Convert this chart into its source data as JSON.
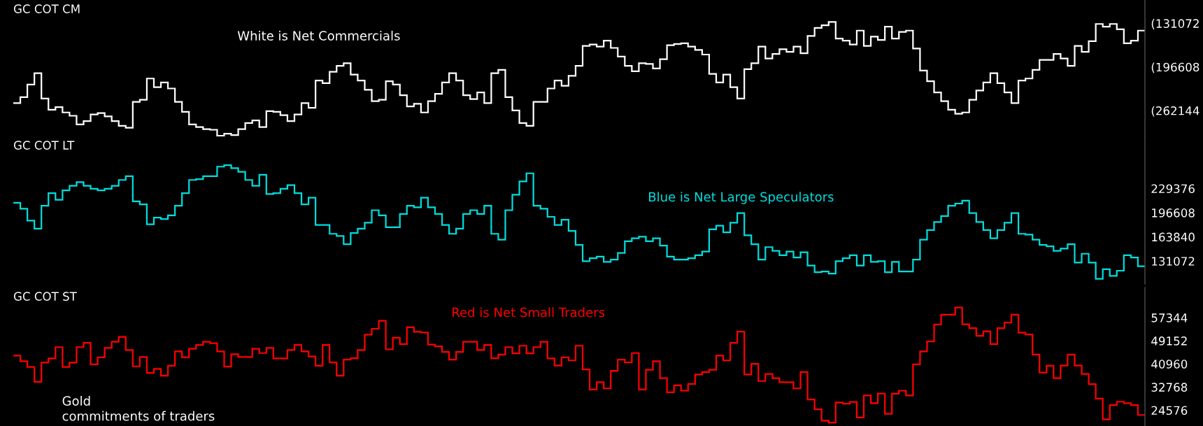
{
  "chart_data": [
    {
      "type": "step",
      "title": "GC COT CM",
      "annotations": [
        "White is Net Commercials"
      ],
      "tick_labels": "y",
      "categories": [
        null,
        null,
        null,
        null,
        null,
        null,
        null,
        null,
        null,
        null,
        null,
        null,
        null,
        null,
        null,
        null,
        null,
        null,
        null,
        null,
        null,
        null,
        null,
        null,
        null,
        null,
        null,
        null,
        null,
        null,
        null,
        null,
        null,
        null,
        null,
        null,
        null,
        null,
        null,
        null,
        null,
        null,
        null,
        null,
        null,
        null,
        null,
        null,
        null,
        null,
        null,
        null,
        null,
        null,
        null,
        null,
        null,
        null,
        null,
        null,
        null,
        null,
        null,
        null,
        null,
        null,
        null,
        null,
        null,
        null,
        null,
        null,
        null,
        null,
        null,
        null,
        null,
        null,
        null,
        null,
        null,
        null,
        null,
        null,
        null,
        null,
        null,
        null,
        null,
        null,
        null,
        null,
        null,
        null,
        null,
        null,
        null,
        null,
        null,
        null,
        null,
        null,
        null,
        null,
        null,
        null,
        null,
        null,
        null,
        null,
        null,
        null,
        null,
        null,
        null,
        null,
        null,
        null,
        null,
        null,
        null,
        null,
        null,
        null,
        null,
        null,
        null,
        null,
        null,
        null,
        null,
        null,
        null,
        null,
        null,
        null,
        null,
        null,
        null,
        null,
        null,
        null,
        null,
        null,
        null,
        null,
        null,
        null,
        null,
        null,
        null,
        null,
        null,
        null,
        null,
        null,
        null,
        null,
        null,
        null,
        null
      ],
      "series": [
        {
          "color": "#ffffff",
          "values": [
            -251000,
            -242000,
            -223000,
            -206000,
            -244000,
            -261000,
            -257000,
            -265000,
            -270000,
            -283000,
            -278000,
            -268000,
            -266000,
            -271000,
            -278000,
            -285000,
            -288000,
            -249000,
            -246000,
            -214000,
            -227000,
            -220000,
            -229000,
            -249000,
            -264000,
            -283000,
            -287000,
            -290000,
            -291000,
            -300000,
            -297000,
            -299000,
            -290000,
            -281000,
            -277000,
            -287000,
            -263000,
            -264000,
            -269000,
            -278000,
            -268000,
            -251000,
            -258000,
            -217000,
            -221000,
            -204000,
            -195000,
            -191000,
            -208000,
            -217000,
            -231000,
            -248000,
            -246000,
            -218000,
            -223000,
            -239000,
            -256000,
            -252000,
            -265000,
            -248000,
            -237000,
            -220000,
            -206000,
            -217000,
            -239000,
            -245000,
            -235000,
            -251000,
            -206000,
            -201000,
            -242000,
            -262000,
            -281000,
            -285000,
            -249000,
            -249000,
            -229000,
            -217000,
            -225000,
            -210000,
            -195000,
            -165000,
            -163000,
            -166000,
            -157000,
            -168000,
            -181000,
            -195000,
            -203000,
            -191000,
            -192000,
            -199000,
            -185000,
            -164000,
            -162000,
            -161000,
            -166000,
            -171000,
            -178000,
            -207000,
            -220000,
            -208000,
            -227000,
            -244000,
            -200000,
            -191000,
            -166000,
            -184000,
            -177000,
            -170000,
            -174000,
            -166000,
            -176000,
            -150000,
            -138000,
            -134000,
            -129000,
            -154000,
            -157000,
            -163000,
            -142000,
            -165000,
            -151000,
            -156000,
            -136000,
            -154000,
            -144000,
            -142000,
            -169000,
            -202000,
            -218000,
            -235000,
            -248000,
            -261000,
            -267000,
            -265000,
            -246000,
            -232000,
            -220000,
            -206000,
            -221000,
            -235000,
            -251000,
            -217000,
            -214000,
            -201000,
            -186000,
            -186000,
            -177000,
            -184000,
            -195000,
            -165000,
            -174000,
            -158000,
            -132000,
            -136000,
            -132000,
            -140000,
            -161000,
            -157000,
            -142000
          ]
        }
      ],
      "ylim": [
        -301000,
        -96000
      ],
      "yticks": [
        {
          "value": -131072,
          "label": "(131072"
        },
        {
          "value": -196608,
          "label": "(196608"
        },
        {
          "value": -262144,
          "label": "(262144"
        }
      ]
    },
    {
      "type": "step",
      "title": "GC COT LT",
      "annotations": [
        "Blue is Net Large Speculators"
      ],
      "tick_labels": "y",
      "categories": [
        null,
        null,
        null,
        null,
        null,
        null,
        null,
        null,
        null,
        null,
        null,
        null,
        null,
        null,
        null,
        null,
        null,
        null,
        null,
        null,
        null,
        null,
        null,
        null,
        null,
        null,
        null,
        null,
        null,
        null,
        null,
        null,
        null,
        null,
        null,
        null,
        null,
        null,
        null,
        null,
        null,
        null,
        null,
        null,
        null,
        null,
        null,
        null,
        null,
        null,
        null,
        null,
        null,
        null,
        null,
        null,
        null,
        null,
        null,
        null,
        null,
        null,
        null,
        null,
        null,
        null,
        null,
        null,
        null,
        null,
        null,
        null,
        null,
        null,
        null,
        null,
        null,
        null,
        null,
        null,
        null,
        null,
        null,
        null,
        null,
        null,
        null,
        null,
        null,
        null,
        null,
        null,
        null,
        null,
        null,
        null,
        null,
        null,
        null,
        null,
        null,
        null,
        null,
        null,
        null,
        null,
        null,
        null,
        null,
        null,
        null,
        null,
        null,
        null,
        null,
        null,
        null,
        null,
        null,
        null,
        null,
        null,
        null,
        null,
        null,
        null,
        null,
        null,
        null,
        null,
        null,
        null,
        null,
        null,
        null,
        null,
        null,
        null,
        null,
        null,
        null,
        null,
        null,
        null,
        null,
        null,
        null,
        null,
        null,
        null,
        null,
        null,
        null,
        null,
        null,
        null,
        null,
        null,
        null,
        null,
        null
      ],
      "series": [
        {
          "color": "#00dede",
          "values": [
            210000,
            202000,
            186000,
            175000,
            206000,
            223000,
            214000,
            227000,
            233000,
            238000,
            233000,
            229000,
            227000,
            229000,
            233000,
            241000,
            246000,
            212000,
            208000,
            181000,
            190000,
            188000,
            193000,
            206000,
            223000,
            241000,
            242000,
            246000,
            246000,
            259000,
            261000,
            257000,
            252000,
            241000,
            233000,
            248000,
            222000,
            223000,
            229000,
            234000,
            223000,
            208000,
            217000,
            180000,
            180000,
            168000,
            165000,
            154000,
            169000,
            175000,
            183000,
            200000,
            193000,
            177000,
            177000,
            195000,
            206000,
            204000,
            217000,
            204000,
            195000,
            180000,
            168000,
            175000,
            195000,
            200000,
            195000,
            206000,
            168000,
            160000,
            200000,
            221000,
            239000,
            250000,
            206000,
            202000,
            191000,
            180000,
            187000,
            172000,
            153000,
            131000,
            135000,
            137000,
            130000,
            133000,
            142000,
            158000,
            162000,
            164000,
            158000,
            162000,
            152000,
            137000,
            133000,
            133000,
            135000,
            139000,
            144000,
            174000,
            179000,
            170000,
            183000,
            196000,
            166000,
            154000,
            133000,
            150000,
            145000,
            139000,
            144000,
            136000,
            143000,
            125000,
            116000,
            117000,
            114000,
            131000,
            135000,
            139000,
            125000,
            139000,
            130000,
            131000,
            116000,
            130000,
            117000,
            117000,
            133000,
            160000,
            173000,
            184000,
            192000,
            206000,
            209000,
            213000,
            196000,
            184000,
            173000,
            162000,
            173000,
            183000,
            196000,
            168000,
            167000,
            160000,
            153000,
            151000,
            145000,
            148000,
            154000,
            129000,
            141000,
            129000,
            107000,
            120000,
            111000,
            118000,
            139000,
            136000,
            124000
          ]
        }
      ],
      "ylim": [
        100000,
        300000
      ],
      "yticks": [
        131072,
        163840,
        196608,
        229376
      ]
    },
    {
      "type": "step",
      "title": "GC COT ST",
      "annotations": [
        "Red is Net Small Traders",
        "Gold\ncommitments of traders"
      ],
      "tick_labels": "y",
      "categories": [
        null,
        null,
        null,
        null,
        null,
        null,
        null,
        null,
        null,
        null,
        null,
        null,
        null,
        null,
        null,
        null,
        null,
        null,
        null,
        null,
        null,
        null,
        null,
        null,
        null,
        null,
        null,
        null,
        null,
        null,
        null,
        null,
        null,
        null,
        null,
        null,
        null,
        null,
        null,
        null,
        null,
        null,
        null,
        null,
        null,
        null,
        null,
        null,
        null,
        null,
        null,
        null,
        null,
        null,
        null,
        null,
        null,
        null,
        null,
        null,
        null,
        null,
        null,
        null,
        null,
        null,
        null,
        null,
        null,
        null,
        null,
        null,
        null,
        null,
        null,
        null,
        null,
        null,
        null,
        null,
        null,
        null,
        null,
        null,
        null,
        null,
        null,
        null,
        null,
        null,
        null,
        null,
        null,
        null,
        null,
        null,
        null,
        null,
        null,
        null,
        null,
        null,
        null,
        null,
        null,
        null,
        null,
        null,
        null,
        null,
        null,
        null,
        null,
        null,
        null,
        null,
        null,
        null,
        null,
        null,
        null,
        null,
        null,
        null,
        null,
        null,
        null,
        null,
        null,
        null,
        null,
        null,
        null,
        null,
        null,
        null,
        null,
        null,
        null,
        null,
        null,
        null,
        null,
        null,
        null,
        null,
        null,
        null,
        null,
        null,
        null,
        null,
        null,
        null,
        null,
        null,
        null,
        null,
        null,
        null,
        null
      ],
      "series": [
        {
          "color": "#ff0000",
          "values": [
            43900,
            41900,
            39900,
            34600,
            41400,
            42900,
            46900,
            39900,
            41400,
            46900,
            48400,
            40800,
            43300,
            46600,
            48800,
            50500,
            45900,
            40100,
            43400,
            37800,
            39200,
            36800,
            40300,
            45400,
            43300,
            46300,
            47700,
            48800,
            48300,
            45400,
            40000,
            44400,
            43400,
            43400,
            46300,
            44800,
            46600,
            42900,
            42900,
            45900,
            47700,
            45400,
            43600,
            40300,
            47700,
            41500,
            36800,
            42500,
            43000,
            45900,
            51300,
            53400,
            56200,
            46100,
            50200,
            48000,
            53900,
            52300,
            52100,
            47800,
            47200,
            45200,
            42500,
            45200,
            48800,
            48800,
            45900,
            47700,
            43000,
            44300,
            46900,
            44700,
            47400,
            44700,
            46900,
            48800,
            42900,
            40400,
            43300,
            42200,
            47400,
            39000,
            31900,
            34500,
            32300,
            38500,
            42500,
            41500,
            44800,
            31900,
            38900,
            41900,
            35900,
            30900,
            33400,
            31500,
            33900,
            37200,
            38100,
            38900,
            43900,
            42200,
            48400,
            52400,
            37200,
            41000,
            34900,
            37400,
            35900,
            34500,
            34500,
            32300,
            38100,
            28400,
            24900,
            20900,
            20200,
            27300,
            26900,
            27500,
            22000,
            29800,
            27100,
            30500,
            23300,
            30400,
            31500,
            29800,
            40800,
            45400,
            48900,
            54900,
            58400,
            58400,
            60900,
            55000,
            53600,
            50900,
            52500,
            48000,
            53600,
            55600,
            58400,
            52000,
            51400,
            44300,
            37900,
            40300,
            35900,
            40400,
            44300,
            40400,
            37400,
            33800,
            28700,
            21300,
            26400,
            27600,
            27100,
            26400,
            22900
          ]
        }
      ],
      "ylim": [
        19000,
        68000
      ],
      "yticks": [
        24576,
        32768,
        40960,
        49152,
        57344
      ]
    }
  ]
}
